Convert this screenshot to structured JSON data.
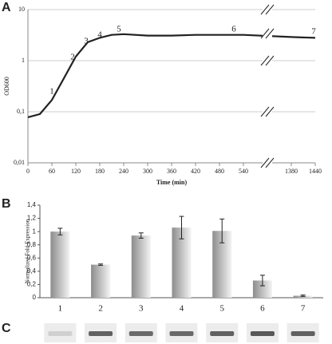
{
  "panel_labels": [
    "A",
    "B",
    "C"
  ],
  "chart_data": [
    {
      "type": "line",
      "x_label": "Time (min)",
      "y_label": "OD600",
      "log_y": true,
      "grid": true,
      "x": [
        0,
        30,
        60,
        90,
        120,
        150,
        180,
        210,
        240,
        300,
        360,
        420,
        480,
        540,
        1380,
        1440
      ],
      "series": [
        {
          "name": "OD600",
          "color": "#222222",
          "values": [
            0.078,
            0.09,
            0.17,
            0.45,
            1.2,
            2.3,
            2.8,
            3.2,
            3.3,
            3.1,
            3.1,
            3.2,
            3.2,
            3.2,
            2.9,
            2.8
          ]
        }
      ],
      "annotations": [
        "1",
        "2",
        "3",
        "4",
        "5",
        "6",
        "7"
      ],
      "xlim": [
        0,
        1440
      ],
      "xticks": [
        0,
        60,
        120,
        180,
        240,
        300,
        360,
        420,
        480,
        540,
        1380,
        1440
      ],
      "ylim": [
        0.01,
        10
      ],
      "yticks": [
        {
          "value": 0.01,
          "label": "0,01"
        },
        {
          "value": 0.1,
          "label": "0,1"
        },
        1,
        10
      ]
    },
    {
      "type": "bar",
      "y_label": "Normalized Fold Expression",
      "categories": [
        "1",
        "2",
        "3",
        "4",
        "5",
        "6",
        "7"
      ],
      "series": [
        {
          "color": "#8c8c8c",
          "values": [
            1.0,
            0.5,
            0.94,
            1.06,
            1.01,
            0.26,
            0.03
          ],
          "errors": [
            0.05,
            0.01,
            0.04,
            0.17,
            0.18,
            0.08,
            0.01
          ]
        }
      ],
      "ylim": [
        0,
        1.4
      ],
      "yticks": [
        0,
        {
          "value": 0.2,
          "label": "0,2"
        },
        {
          "value": 0.4,
          "label": "0,4"
        },
        {
          "value": 0.6,
          "label": "0,6"
        },
        {
          "value": 0.8,
          "label": "0,8"
        },
        1,
        {
          "value": 1.2,
          "label": "1,2"
        },
        {
          "value": 1.4,
          "label": "1,4"
        }
      ]
    }
  ]
}
